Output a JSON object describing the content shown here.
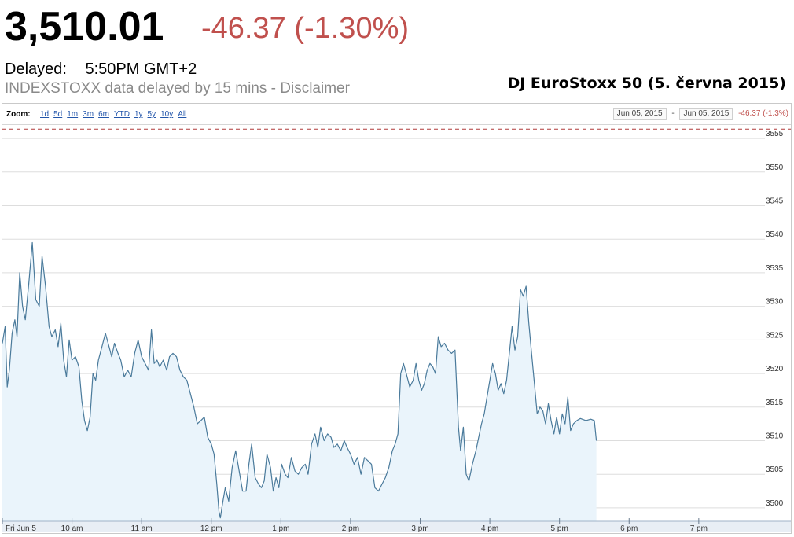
{
  "header": {
    "price": "3,510.01",
    "change": "-46.37 (-1.30%)",
    "delayed_label": "Delayed:",
    "delayed_time": "5:50PM GMT+2",
    "source_note": "INDEXSTOXX data delayed by 15 mins - Disclaimer",
    "caption": "DJ EuroStoxx 50 (5. června 2015)"
  },
  "zoom": {
    "label": "Zoom:",
    "options": [
      "1d",
      "5d",
      "1m",
      "3m",
      "6m",
      "YTD",
      "1y",
      "5y",
      "10y",
      "All"
    ]
  },
  "range": {
    "from": "Jun 05, 2015",
    "separator": "-",
    "to": "Jun 05, 2015",
    "change": "-46.37 (-1.3%)"
  },
  "colors": {
    "line": "#4a7a9b",
    "fill": "#eaf4fb",
    "negative": "#c0504d",
    "previous_close_line": "#b03a3a",
    "grid": "#dddddd"
  },
  "chart_data": {
    "type": "area",
    "ylim": [
      3498,
      3557
    ],
    "yticks": [
      3500,
      3505,
      3510,
      3515,
      3520,
      3525,
      3530,
      3535,
      3540,
      3545,
      3550,
      3555
    ],
    "xticks": [
      {
        "label": "Fri Jun 5",
        "t": 9.0
      },
      {
        "label": "10 am",
        "t": 10.0
      },
      {
        "label": "11 am",
        "t": 11.0
      },
      {
        "label": "12 pm",
        "t": 12.0
      },
      {
        "label": "1 pm",
        "t": 13.0
      },
      {
        "label": "2 pm",
        "t": 14.0
      },
      {
        "label": "3 pm",
        "t": 15.0
      },
      {
        "label": "4 pm",
        "t": 16.0
      },
      {
        "label": "5 pm",
        "t": 17.0
      },
      {
        "label": "6 pm",
        "t": 18.0
      },
      {
        "label": "7 pm",
        "t": 19.0
      }
    ],
    "xlim": [
      9.0,
      19.95
    ],
    "previous_close": 3556.38,
    "series": [
      {
        "points": [
          [
            9.0,
            3524.5
          ],
          [
            9.04,
            3527.0
          ],
          [
            9.07,
            3518.0
          ],
          [
            9.1,
            3520.5
          ],
          [
            9.14,
            3526.0
          ],
          [
            9.18,
            3528.0
          ],
          [
            9.21,
            3525.5
          ],
          [
            9.25,
            3535.0
          ],
          [
            9.29,
            3530.0
          ],
          [
            9.33,
            3528.0
          ],
          [
            9.38,
            3533.5
          ],
          [
            9.43,
            3539.5
          ],
          [
            9.48,
            3531.0
          ],
          [
            9.53,
            3530.0
          ],
          [
            9.57,
            3537.5
          ],
          [
            9.62,
            3533.0
          ],
          [
            9.67,
            3527.0
          ],
          [
            9.71,
            3525.5
          ],
          [
            9.76,
            3526.5
          ],
          [
            9.8,
            3524.0
          ],
          [
            9.84,
            3527.5
          ],
          [
            9.88,
            3522.0
          ],
          [
            9.92,
            3519.5
          ],
          [
            9.96,
            3525.0
          ],
          [
            10.0,
            3522.0
          ],
          [
            10.05,
            3522.5
          ],
          [
            10.1,
            3521.0
          ],
          [
            10.14,
            3516.0
          ],
          [
            10.18,
            3513.0
          ],
          [
            10.22,
            3511.5
          ],
          [
            10.26,
            3513.5
          ],
          [
            10.3,
            3520.0
          ],
          [
            10.34,
            3519.0
          ],
          [
            10.38,
            3522.0
          ],
          [
            10.43,
            3524.0
          ],
          [
            10.48,
            3526.0
          ],
          [
            10.52,
            3524.5
          ],
          [
            10.57,
            3522.5
          ],
          [
            10.61,
            3524.5
          ],
          [
            10.66,
            3523.0
          ],
          [
            10.7,
            3522.0
          ],
          [
            10.75,
            3519.5
          ],
          [
            10.8,
            3520.5
          ],
          [
            10.85,
            3519.5
          ],
          [
            10.9,
            3523.0
          ],
          [
            10.95,
            3525.0
          ],
          [
            11.0,
            3522.5
          ],
          [
            11.05,
            3521.5
          ],
          [
            11.1,
            3520.5
          ],
          [
            11.14,
            3526.5
          ],
          [
            11.18,
            3521.5
          ],
          [
            11.22,
            3522.0
          ],
          [
            11.26,
            3521.0
          ],
          [
            11.31,
            3522.0
          ],
          [
            11.36,
            3520.5
          ],
          [
            11.4,
            3522.5
          ],
          [
            11.45,
            3523.0
          ],
          [
            11.5,
            3522.5
          ],
          [
            11.55,
            3520.5
          ],
          [
            11.6,
            3519.5
          ],
          [
            11.65,
            3519.0
          ],
          [
            11.7,
            3517.0
          ],
          [
            11.75,
            3515.0
          ],
          [
            11.8,
            3512.5
          ],
          [
            11.85,
            3513.0
          ],
          [
            11.9,
            3513.5
          ],
          [
            11.95,
            3510.5
          ],
          [
            12.0,
            3509.5
          ],
          [
            12.04,
            3508.0
          ],
          [
            12.08,
            3503.5
          ],
          [
            12.11,
            3499.5
          ],
          [
            12.13,
            3498.5
          ],
          [
            12.16,
            3500.5
          ],
          [
            12.2,
            3503.0
          ],
          [
            12.25,
            3501.0
          ],
          [
            12.3,
            3506.0
          ],
          [
            12.35,
            3508.5
          ],
          [
            12.4,
            3505.5
          ],
          [
            12.45,
            3502.5
          ],
          [
            12.5,
            3502.5
          ],
          [
            12.54,
            3506.5
          ],
          [
            12.58,
            3509.5
          ],
          [
            12.63,
            3504.5
          ],
          [
            12.68,
            3503.5
          ],
          [
            12.72,
            3503.0
          ],
          [
            12.76,
            3504.0
          ],
          [
            12.8,
            3508.0
          ],
          [
            12.85,
            3506.0
          ],
          [
            12.89,
            3502.5
          ],
          [
            12.93,
            3504.5
          ],
          [
            12.97,
            3503.0
          ],
          [
            13.01,
            3506.5
          ],
          [
            13.06,
            3505.0
          ],
          [
            13.1,
            3504.5
          ],
          [
            13.15,
            3507.5
          ],
          [
            13.2,
            3505.5
          ],
          [
            13.25,
            3505.0
          ],
          [
            13.3,
            3506.0
          ],
          [
            13.35,
            3506.5
          ],
          [
            13.39,
            3505.0
          ],
          [
            13.44,
            3509.5
          ],
          [
            13.49,
            3511.0
          ],
          [
            13.53,
            3509.0
          ],
          [
            13.57,
            3512.0
          ],
          [
            13.62,
            3510.0
          ],
          [
            13.67,
            3511.0
          ],
          [
            13.72,
            3510.5
          ],
          [
            13.76,
            3509.0
          ],
          [
            13.81,
            3509.5
          ],
          [
            13.86,
            3508.5
          ],
          [
            13.91,
            3510.0
          ],
          [
            13.95,
            3509.0
          ],
          [
            14.0,
            3508.0
          ],
          [
            14.05,
            3506.5
          ],
          [
            14.1,
            3507.5
          ],
          [
            14.15,
            3505.0
          ],
          [
            14.2,
            3507.5
          ],
          [
            14.25,
            3507.0
          ],
          [
            14.3,
            3506.5
          ],
          [
            14.35,
            3503.0
          ],
          [
            14.4,
            3502.5
          ],
          [
            14.45,
            3503.5
          ],
          [
            14.5,
            3504.5
          ],
          [
            14.55,
            3506.0
          ],
          [
            14.6,
            3508.5
          ],
          [
            14.64,
            3509.5
          ],
          [
            14.68,
            3511.0
          ],
          [
            14.72,
            3520.0
          ],
          [
            14.76,
            3521.5
          ],
          [
            14.8,
            3520.0
          ],
          [
            14.85,
            3518.0
          ],
          [
            14.9,
            3519.0
          ],
          [
            14.94,
            3521.5
          ],
          [
            14.98,
            3519.0
          ],
          [
            15.02,
            3517.5
          ],
          [
            15.06,
            3518.5
          ],
          [
            15.1,
            3520.5
          ],
          [
            15.14,
            3521.5
          ],
          [
            15.18,
            3521.0
          ],
          [
            15.22,
            3520.0
          ],
          [
            15.26,
            3525.5
          ],
          [
            15.3,
            3524.0
          ],
          [
            15.35,
            3524.5
          ],
          [
            15.4,
            3523.5
          ],
          [
            15.45,
            3523.0
          ],
          [
            15.5,
            3523.5
          ],
          [
            15.55,
            3512.0
          ],
          [
            15.58,
            3508.5
          ],
          [
            15.62,
            3512.0
          ],
          [
            15.66,
            3505.0
          ],
          [
            15.7,
            3504.0
          ],
          [
            15.75,
            3506.5
          ],
          [
            15.8,
            3508.5
          ],
          [
            15.84,
            3510.5
          ],
          [
            15.88,
            3512.5
          ],
          [
            15.92,
            3514.0
          ],
          [
            15.96,
            3516.5
          ],
          [
            16.0,
            3519.0
          ],
          [
            16.04,
            3521.5
          ],
          [
            16.08,
            3520.0
          ],
          [
            16.12,
            3517.5
          ],
          [
            16.16,
            3518.5
          ],
          [
            16.2,
            3517.0
          ],
          [
            16.24,
            3519.0
          ],
          [
            16.28,
            3523.0
          ],
          [
            16.32,
            3527.0
          ],
          [
            16.36,
            3523.5
          ],
          [
            16.4,
            3525.5
          ],
          [
            16.44,
            3532.5
          ],
          [
            16.48,
            3531.5
          ],
          [
            16.52,
            3533.0
          ],
          [
            16.56,
            3527.5
          ],
          [
            16.6,
            3523.0
          ],
          [
            16.64,
            3518.5
          ],
          [
            16.68,
            3514.0
          ],
          [
            16.72,
            3515.0
          ],
          [
            16.76,
            3514.5
          ],
          [
            16.8,
            3512.5
          ],
          [
            16.84,
            3515.5
          ],
          [
            16.88,
            3513.0
          ],
          [
            16.92,
            3511.0
          ],
          [
            16.96,
            3513.5
          ],
          [
            17.0,
            3511.0
          ],
          [
            17.04,
            3514.0
          ],
          [
            17.08,
            3512.5
          ],
          [
            17.12,
            3516.5
          ],
          [
            17.16,
            3511.5
          ],
          [
            17.2,
            3512.5
          ],
          [
            17.25,
            3513.0
          ],
          [
            17.3,
            3513.3
          ],
          [
            17.38,
            3513.0
          ],
          [
            17.45,
            3513.2
          ],
          [
            17.5,
            3513.0
          ],
          [
            17.53,
            3510.0
          ]
        ]
      }
    ]
  }
}
